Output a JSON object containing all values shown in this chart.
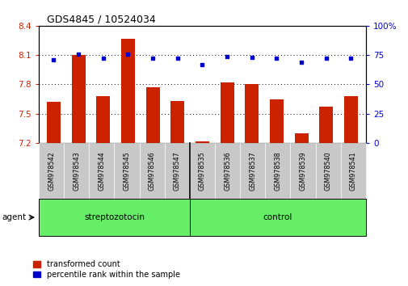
{
  "title": "GDS4845 / 10524034",
  "samples": [
    "GSM978542",
    "GSM978543",
    "GSM978544",
    "GSM978545",
    "GSM978546",
    "GSM978547",
    "GSM978535",
    "GSM978536",
    "GSM978537",
    "GSM978538",
    "GSM978539",
    "GSM978540",
    "GSM978541"
  ],
  "bar_values": [
    7.62,
    8.1,
    7.68,
    8.27,
    7.77,
    7.63,
    7.22,
    7.82,
    7.8,
    7.65,
    7.3,
    7.57,
    7.68
  ],
  "dot_values": [
    71,
    76,
    72,
    76,
    72,
    72,
    67,
    74,
    73,
    72,
    69,
    72,
    72
  ],
  "bar_bottom": 7.2,
  "ylim_left": [
    7.2,
    8.4
  ],
  "ylim_right": [
    0,
    100
  ],
  "yticks_left": [
    7.2,
    7.5,
    7.8,
    8.1,
    8.4
  ],
  "yticks_right": [
    0,
    25,
    50,
    75,
    100
  ],
  "bar_color": "#cc2200",
  "dot_color": "#0000cc",
  "n_strep": 6,
  "n_control": 7,
  "group_labels": [
    "streptozotocin",
    "control"
  ],
  "group_color": "#66ee66",
  "agent_label": "agent",
  "legend_bar_label": "transformed count",
  "legend_dot_label": "percentile rank within the sample",
  "background_color": "#ffffff",
  "tick_label_color_left": "#cc2200",
  "tick_label_color_right": "#0000cc",
  "xlabel_bg": "#c8c8c8"
}
